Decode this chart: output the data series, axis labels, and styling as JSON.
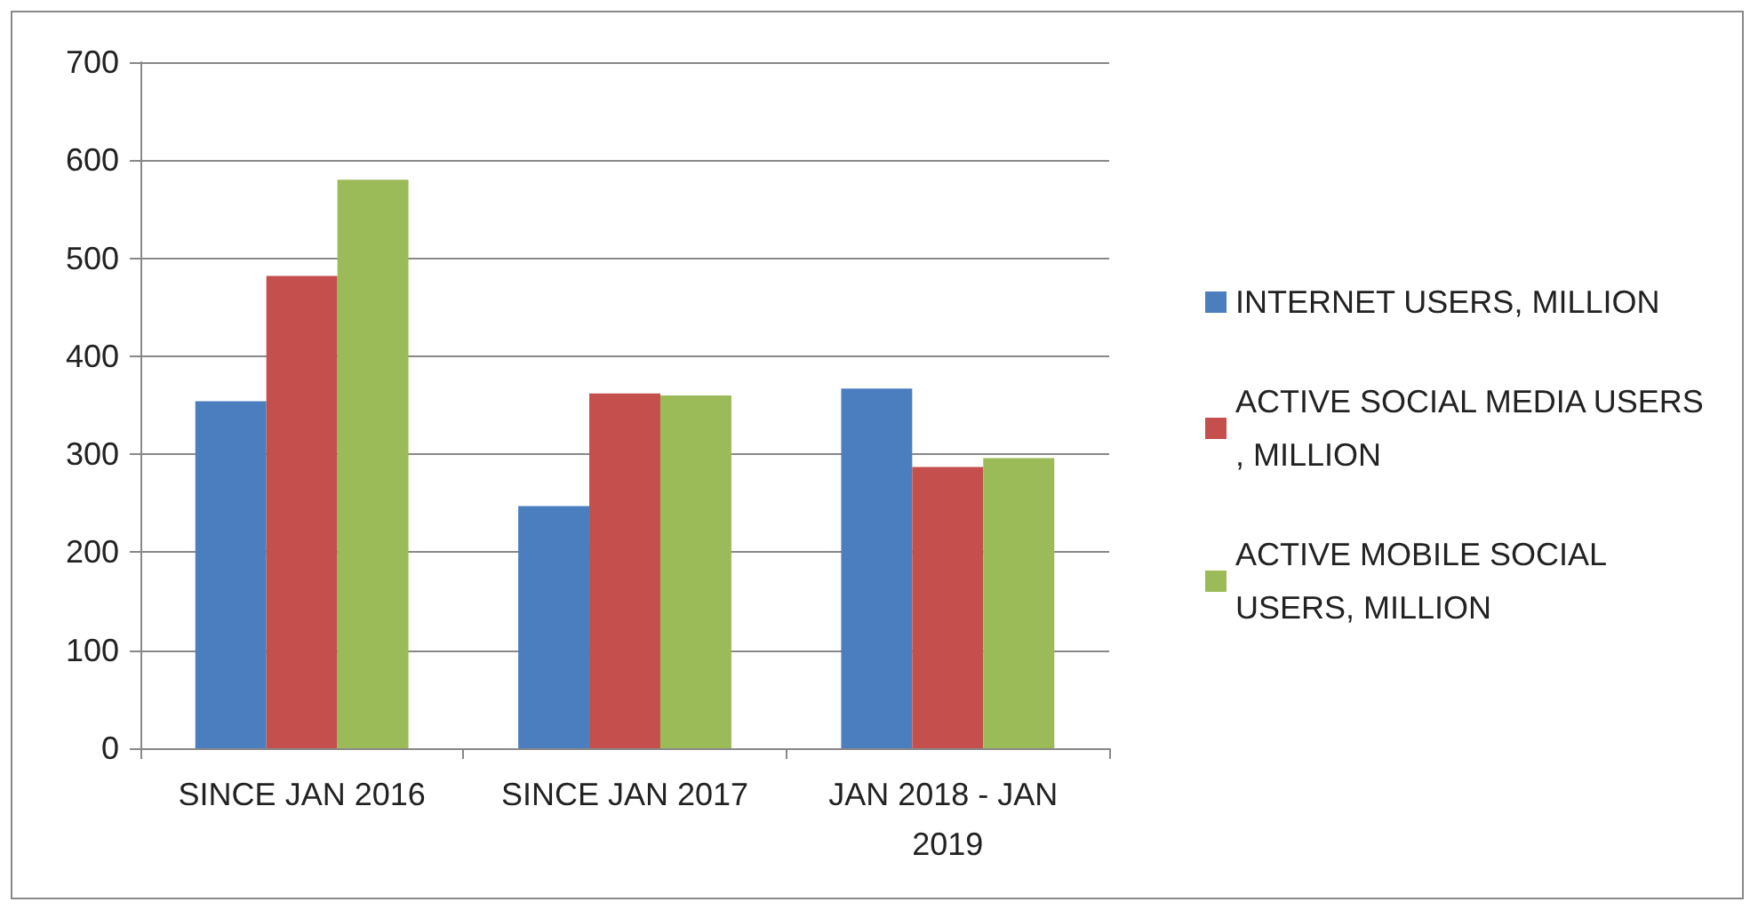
{
  "chart_data": {
    "type": "bar",
    "categories": [
      "SINCE JAN 2016",
      "SINCE JAN 2017",
      "JAN 2018 - JAN 2019"
    ],
    "series": [
      {
        "name": "INTERNET USERS, MILLION",
        "color": "#4a7ebf",
        "values": [
          354,
          247,
          367
        ]
      },
      {
        "name": "ACTIVE SOCIAL MEDIA USERS, MILLION",
        "color": "#c44f4c",
        "values": [
          482,
          362,
          287
        ]
      },
      {
        "name": "ACTIVE MOBILE SOCIAL USERS, MILLION",
        "color": "#9bbb59",
        "values": [
          580,
          360,
          296
        ]
      }
    ],
    "ylim": [
      0,
      700
    ],
    "yticks": [
      0,
      100,
      200,
      300,
      400,
      500,
      600,
      700
    ],
    "grid": "y",
    "legend": "right"
  }
}
